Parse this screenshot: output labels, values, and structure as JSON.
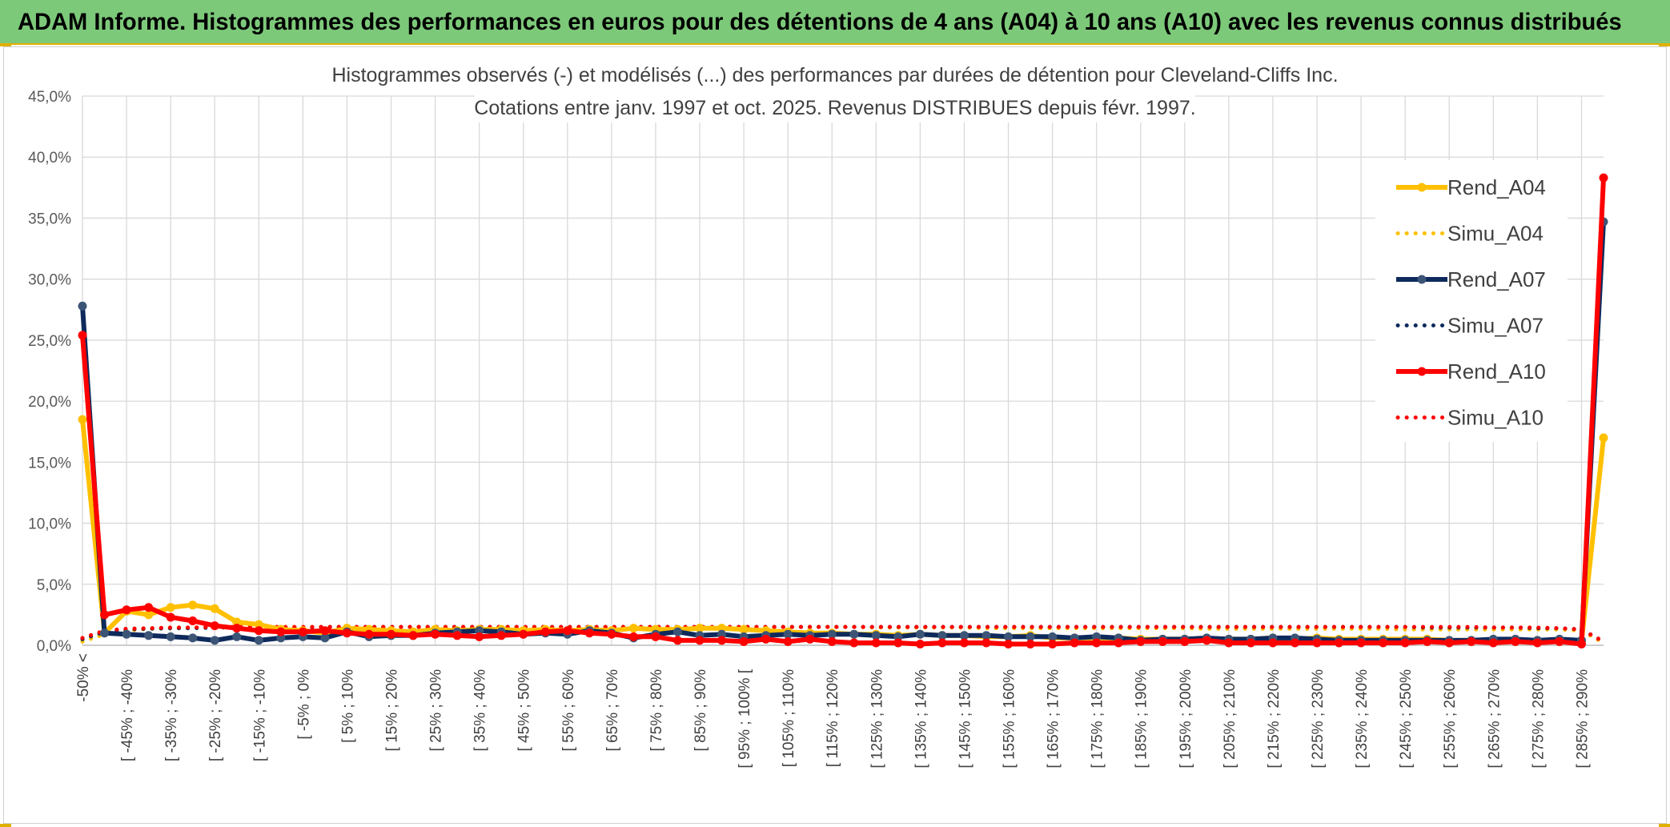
{
  "banner": {
    "title": "ADAM Informe. Histogrammes des performances en euros pour des détentions de 4 ans (A04) à 10 ans (A10) avec les revenus connus distribués"
  },
  "colors": {
    "banner_bg": "#7dc97a",
    "accent": "#e0b000",
    "A04": "#ffc000",
    "A07": "#0e2a5c",
    "A07_marker": "#3c5577",
    "A10": "#ff0000"
  },
  "chart_data": {
    "type": "line",
    "title_lines": [
      "Histogrammes observés (-) et modélisés (...) des performances par durées de détention pour Cleveland-Cliffs Inc.",
      "Cotations entre janv. 1997 et oct. 2025. Revenus DISTRIBUES depuis févr. 1997."
    ],
    "ylim": [
      0,
      45
    ],
    "yticks": [
      "0,0%",
      "5,0%",
      "10,0%",
      "15,0%",
      "20,0%",
      "25,0%",
      "30,0%",
      "35,0%",
      "40,0%",
      "45,0%"
    ],
    "grid": true,
    "legend_position": "right",
    "x_count": 70,
    "x_tick_labels": [
      "-50% <",
      "[ -45% ; -40%",
      "[ -35% ; -30%",
      "[ -25% ; -20%",
      "[ -15% ; -10%",
      "[ -5% ; 0%",
      "[ 5% ; 10%",
      "[ 15% ; 20%",
      "[ 25% ; 30%",
      "[ 35% ; 40%",
      "[ 45% ; 50%",
      "[ 55% ; 60%",
      "[ 65% ; 70%",
      "[ 75% ; 80%",
      "[ 85% ; 90%",
      "[ 95% ; 100% [",
      "[ 105% ; 110%",
      "[ 115% ; 120%",
      "[ 125% ; 130%",
      "[ 135% ; 140%",
      "[ 145% ; 150%",
      "[ 155% ; 160%",
      "[ 165% ; 170%",
      "[ 175% ; 180%",
      "[ 185% ; 190%",
      "[ 195% ; 200%",
      "[ 205% ; 210%",
      "[ 215% ; 220%",
      "[ 225% ; 230%",
      "[ 235% ; 240%",
      "[ 245% ; 250%",
      "[ 255% ; 260%",
      "[ 265% ; 270%",
      "[ 275% ; 280%",
      "[ 285% ; 290%"
    ],
    "series": [
      {
        "name": "Rend_A04",
        "style": "solid",
        "color": "#ffc000",
        "values": [
          18.5,
          1.0,
          2.8,
          2.5,
          3.1,
          3.3,
          3.0,
          1.9,
          1.7,
          1.3,
          1.2,
          1.0,
          1.4,
          1.3,
          1.2,
          1.1,
          1.3,
          1.2,
          1.3,
          1.3,
          1.2,
          1.3,
          1.2,
          1.3,
          1.2,
          1.4,
          1.3,
          1.3,
          1.4,
          1.4,
          1.3,
          1.2,
          1.1,
          1.0,
          1.0,
          0.9,
          0.9,
          0.8,
          0.9,
          0.8,
          0.8,
          0.7,
          0.7,
          0.8,
          0.6,
          0.6,
          0.6,
          0.6,
          0.5,
          0.5,
          0.5,
          0.5,
          0.5,
          0.5,
          0.6,
          0.5,
          0.6,
          0.5,
          0.5,
          0.5,
          0.5,
          0.5,
          0.4,
          0.4,
          0.4,
          0.4,
          0.4,
          0.4,
          0.3,
          17.0
        ]
      },
      {
        "name": "Simu_A04",
        "style": "dotted",
        "color": "#ffc000",
        "values": [
          0.3,
          0.9,
          1.2,
          1.35,
          1.4,
          1.45,
          1.5,
          1.5,
          1.5,
          1.5,
          1.5,
          1.5,
          1.5,
          1.5,
          1.5,
          1.5,
          1.5,
          1.5,
          1.5,
          1.5,
          1.5,
          1.5,
          1.5,
          1.5,
          1.5,
          1.5,
          1.5,
          1.5,
          1.5,
          1.5,
          1.5,
          1.5,
          1.5,
          1.5,
          1.5,
          1.5,
          1.45,
          1.45,
          1.45,
          1.45,
          1.45,
          1.4,
          1.4,
          1.4,
          1.4,
          1.4,
          1.4,
          1.4,
          1.4,
          1.4,
          1.4,
          1.35,
          1.35,
          1.35,
          1.35,
          1.35,
          1.35,
          1.35,
          1.35,
          1.35,
          1.3,
          1.3,
          1.3,
          1.3,
          1.3,
          1.3,
          1.3,
          1.3,
          1.2,
          0.2
        ]
      },
      {
        "name": "Rend_A07",
        "style": "solid",
        "color": "#0e2a5c",
        "values": [
          27.8,
          1.0,
          0.9,
          0.8,
          0.7,
          0.6,
          0.4,
          0.7,
          0.4,
          0.6,
          0.7,
          0.6,
          1.1,
          0.7,
          0.8,
          0.8,
          1.0,
          1.1,
          1.2,
          1.1,
          0.9,
          1.0,
          0.9,
          1.2,
          1.0,
          0.6,
          0.9,
          1.1,
          0.8,
          0.9,
          0.7,
          0.8,
          0.9,
          0.8,
          0.9,
          0.9,
          0.8,
          0.7,
          0.9,
          0.8,
          0.8,
          0.8,
          0.7,
          0.7,
          0.7,
          0.6,
          0.7,
          0.6,
          0.4,
          0.5,
          0.5,
          0.6,
          0.5,
          0.5,
          0.6,
          0.6,
          0.5,
          0.4,
          0.4,
          0.4,
          0.4,
          0.4,
          0.4,
          0.4,
          0.5,
          0.5,
          0.4,
          0.5,
          0.4,
          34.7
        ]
      },
      {
        "name": "Simu_A07",
        "style": "dotted",
        "color": "#0e2a5c",
        "values": [
          0.5,
          1.1,
          1.3,
          1.35,
          1.4,
          1.4,
          1.45,
          1.45,
          1.45,
          1.45,
          1.45,
          1.5,
          1.5,
          1.5,
          1.5,
          1.5,
          1.5,
          1.5,
          1.5,
          1.5,
          1.5,
          1.5,
          1.5,
          1.5,
          1.5,
          1.5,
          1.5,
          1.5,
          1.5,
          1.5,
          1.5,
          1.5,
          1.5,
          1.5,
          1.5,
          1.5,
          1.5,
          1.5,
          1.5,
          1.5,
          1.5,
          1.5,
          1.5,
          1.5,
          1.5,
          1.5,
          1.5,
          1.5,
          1.5,
          1.5,
          1.5,
          1.5,
          1.5,
          1.5,
          1.5,
          1.5,
          1.5,
          1.5,
          1.5,
          1.5,
          1.5,
          1.45,
          1.45,
          1.45,
          1.45,
          1.45,
          1.4,
          1.4,
          1.3,
          0.3
        ]
      },
      {
        "name": "Rend_A10",
        "style": "solid",
        "color": "#ff0000",
        "values": [
          25.4,
          2.5,
          2.9,
          3.1,
          2.3,
          2.0,
          1.6,
          1.4,
          1.2,
          1.1,
          1.1,
          1.2,
          1.0,
          0.9,
          0.9,
          0.8,
          0.9,
          0.8,
          0.7,
          0.8,
          0.9,
          1.1,
          1.2,
          1.0,
          0.9,
          0.7,
          0.7,
          0.4,
          0.4,
          0.4,
          0.3,
          0.5,
          0.3,
          0.5,
          0.3,
          0.2,
          0.2,
          0.2,
          0.1,
          0.2,
          0.2,
          0.2,
          0.1,
          0.1,
          0.1,
          0.2,
          0.2,
          0.2,
          0.3,
          0.3,
          0.3,
          0.4,
          0.2,
          0.2,
          0.2,
          0.2,
          0.2,
          0.2,
          0.2,
          0.2,
          0.2,
          0.3,
          0.2,
          0.3,
          0.2,
          0.3,
          0.2,
          0.3,
          0.1,
          38.3
        ]
      },
      {
        "name": "Simu_A10",
        "style": "dotted",
        "color": "#ff0000",
        "values": [
          0.6,
          1.2,
          1.35,
          1.4,
          1.45,
          1.45,
          1.5,
          1.5,
          1.5,
          1.5,
          1.5,
          1.5,
          1.5,
          1.5,
          1.5,
          1.5,
          1.5,
          1.5,
          1.5,
          1.5,
          1.5,
          1.5,
          1.5,
          1.5,
          1.5,
          1.5,
          1.5,
          1.5,
          1.5,
          1.5,
          1.5,
          1.5,
          1.5,
          1.5,
          1.5,
          1.5,
          1.5,
          1.5,
          1.5,
          1.5,
          1.5,
          1.5,
          1.5,
          1.5,
          1.5,
          1.5,
          1.5,
          1.5,
          1.5,
          1.5,
          1.5,
          1.5,
          1.5,
          1.5,
          1.5,
          1.5,
          1.5,
          1.5,
          1.5,
          1.5,
          1.5,
          1.5,
          1.5,
          1.5,
          1.45,
          1.45,
          1.45,
          1.4,
          1.3,
          0.3
        ]
      }
    ]
  }
}
